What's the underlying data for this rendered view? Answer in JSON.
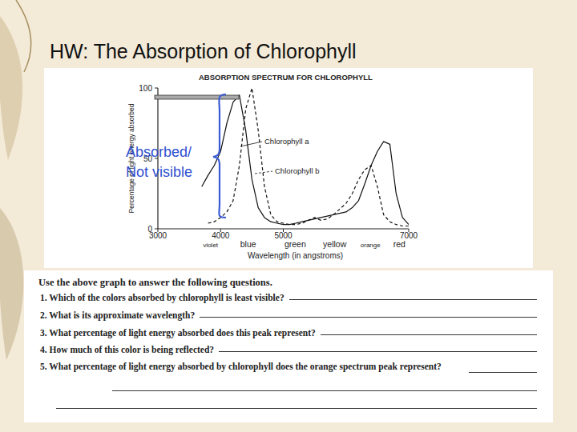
{
  "chart_data": {
    "type": "line",
    "title": "ABSORPTION SPECTRUM FOR CHLOROPHYLL",
    "x_label": "Wavelength (in angstroms)",
    "y_label": "Percentage of light energy absorbed",
    "x": [
      3700,
      3800,
      3900,
      4000,
      4100,
      4200,
      4300,
      4400,
      4500,
      4600,
      4700,
      4800,
      4900,
      5000,
      5100,
      5200,
      5300,
      5400,
      5500,
      5600,
      5700,
      5800,
      5900,
      6000,
      6100,
      6200,
      6300,
      6400,
      6500,
      6600,
      6700,
      6800,
      6900,
      7000
    ],
    "series": [
      {
        "name": "Chlorophyll a",
        "color": "#111111",
        "line_style": "solid",
        "values": [
          30,
          38,
          45,
          55,
          75,
          90,
          95,
          70,
          35,
          15,
          8,
          5,
          4,
          3,
          3,
          4,
          5,
          6,
          7,
          8,
          9,
          10,
          11,
          12,
          15,
          20,
          32,
          45,
          55,
          62,
          60,
          25,
          8,
          3
        ]
      },
      {
        "name": "Chlorophyll b",
        "color": "#111111",
        "line_style": "dashed",
        "values": [
          null,
          4,
          5,
          8,
          12,
          20,
          45,
          85,
          100,
          70,
          30,
          10,
          5,
          4,
          3,
          3,
          4,
          6,
          8,
          6,
          7,
          10,
          14,
          18,
          25,
          35,
          42,
          45,
          30,
          10,
          5,
          3,
          2,
          2
        ]
      }
    ],
    "xlim": [
      3000,
      7000
    ],
    "xticks": [
      3000,
      4000,
      5000,
      7000
    ],
    "ylim": [
      0,
      100
    ],
    "yticks": [
      0,
      50,
      100
    ],
    "grid": false,
    "band_labels": [
      {
        "text": "violet",
        "x": 3840
      },
      {
        "text": "blue",
        "x": 4440
      },
      {
        "text": "green",
        "x": 5190
      },
      {
        "text": "yellow",
        "x": 5820
      },
      {
        "text": "orange",
        "x": 6390
      },
      {
        "text": "red",
        "x": 6850
      }
    ],
    "callout": [
      "Absorbed/",
      "Not visible"
    ]
  },
  "slide": {
    "title": "HW: The Absorption of Chlorophyll",
    "worksheet": {
      "intro": "Use the above graph to answer the following questions.",
      "questions": [
        "1. Which of the colors absorbed by chlorophyll is least visible?",
        "2. What is its approximate wavelength?",
        "3. What percentage of light energy absorbed does this peak represent?",
        "4. How much of this color is being reflected?",
        "5. What percentage of light energy absorbed by chlorophyll does the orange spectrum peak represent?"
      ]
    }
  }
}
